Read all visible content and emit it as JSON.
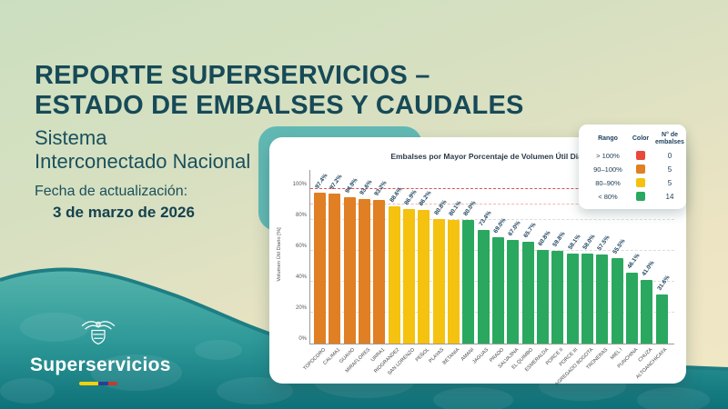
{
  "header": {
    "title_line1": "REPORTE SUPERSERVICIOS –",
    "title_line2": "ESTADO DE EMBALSES Y CAUDALES",
    "subtitle_line1": "Sistema",
    "subtitle_line2": "Interconectado Nacional",
    "update_label": "Fecha de actualización:",
    "update_date": "3 de marzo de 2026"
  },
  "logo": {
    "name": "Superservicios"
  },
  "legend": {
    "headers": [
      "Rango",
      "Color",
      "N° de embalses"
    ],
    "rows": [
      {
        "range": "> 100%",
        "color": "#e8493a",
        "count": "0"
      },
      {
        "range": "90–100%",
        "color": "#e07f23",
        "count": "5"
      },
      {
        "range": "80–90%",
        "color": "#f4c20f",
        "count": "5"
      },
      {
        "range": "< 80%",
        "color": "#2aa85f",
        "count": "14"
      }
    ]
  },
  "chart_data": {
    "type": "bar",
    "title": "Embalses por Mayor Porcentaje de Volumen Útil Diario",
    "xlabel": "",
    "ylabel": "Volumen Útil Diario [%]",
    "ylim": [
      0,
      100
    ],
    "yticks": [
      0,
      20,
      40,
      60,
      80,
      100
    ],
    "ytick_suffix": "%",
    "grid": true,
    "legend_position": "top-right",
    "ref_lines": [
      {
        "value": 100,
        "color": "#d95454",
        "style": "dashed"
      },
      {
        "value": 90,
        "color": "#efb9ac",
        "style": "dashed"
      }
    ],
    "categories": [
      "TOPOCORO",
      "CALIMA1",
      "GUAVIO",
      "MIRAFLORES",
      "URRA1",
      "RIOGRANDE2",
      "SAN LORENZO",
      "PEÑOL",
      "PLAYAS",
      "BETANIA",
      "AMANI",
      "JAGUAS",
      "PRADO",
      "SALVAJINA",
      "EL QUIMBO",
      "ESMERALDA",
      "PORCE II",
      "PORCE III",
      "AGREGADO BOGOTA",
      "TRONERAS",
      "MIEL I",
      "PUNCHINA",
      "CHUZA",
      "ALTOANCHICAYA"
    ],
    "values": [
      97.4,
      97.2,
      94.9,
      93.6,
      93.2,
      88.6,
      86.9,
      86.2,
      80.8,
      80.1,
      80.0,
      73.4,
      69.0,
      67.0,
      65.7,
      60.8,
      59.8,
      58.1,
      58.0,
      57.5,
      55.5,
      46.1,
      41.0,
      31.6
    ],
    "color_bands": {
      "gt_100": "#e8493a",
      "band_90_100": "#e07f23",
      "band_80_90": "#f4c20f",
      "lt_80": "#2aa85f"
    }
  }
}
